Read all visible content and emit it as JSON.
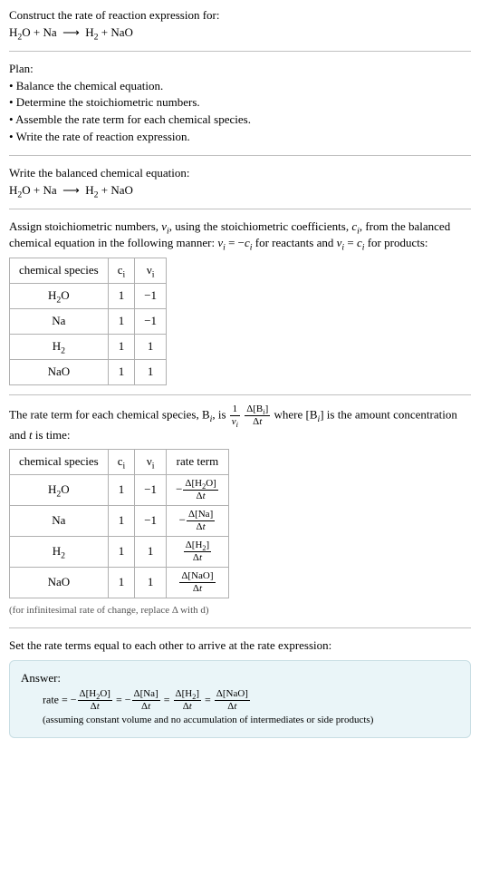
{
  "header": {
    "title": "Construct the rate of reaction expression for:",
    "equation_html": "H<sub>2</sub>O + Na &nbsp;⟶&nbsp; H<sub>2</sub> + NaO"
  },
  "plan": {
    "label": "Plan:",
    "items": [
      "• Balance the chemical equation.",
      "• Determine the stoichiometric numbers.",
      "• Assemble the rate term for each chemical species.",
      "• Write the rate of reaction expression."
    ]
  },
  "balanced": {
    "label": "Write the balanced chemical equation:",
    "equation_html": "H<sub>2</sub>O + Na &nbsp;⟶&nbsp; H<sub>2</sub> + NaO"
  },
  "stoich_intro_html": "Assign stoichiometric numbers, <span class=\"it\">ν<sub>i</sub></span>, using the stoichiometric coefficients, <span class=\"it\">c<sub>i</sub></span>, from the balanced chemical equation in the following manner: <span class=\"it\">ν<sub>i</sub></span> = −<span class=\"it\">c<sub>i</sub></span> for reactants and <span class=\"it\">ν<sub>i</sub></span> = <span class=\"it\">c<sub>i</sub></span> for products:",
  "stoich_table": {
    "headers": [
      "chemical species",
      "c<sub>i</sub>",
      "ν<sub>i</sub>"
    ],
    "rows": [
      [
        "H<sub>2</sub>O",
        "1",
        "−1"
      ],
      [
        "Na",
        "1",
        "−1"
      ],
      [
        "H<sub>2</sub>",
        "1",
        "1"
      ],
      [
        "NaO",
        "1",
        "1"
      ]
    ]
  },
  "rate_intro_html": "The rate term for each chemical species, B<sub><span class=\"it\">i</span></sub>, is <span class=\"frac\"><span class=\"num\">1</span><span class=\"den\"><span class=\"it\">ν<sub>i</sub></span></span></span> <span class=\"frac\"><span class=\"num\">Δ[B<sub><span class=\"it\">i</span></sub>]</span><span class=\"den\">Δ<span class=\"it\">t</span></span></span> where [B<sub><span class=\"it\">i</span></sub>] is the amount concentration and <span class=\"it\">t</span> is time:",
  "rate_table": {
    "headers": [
      "chemical species",
      "c<sub>i</sub>",
      "ν<sub>i</sub>",
      "rate term"
    ],
    "rows": [
      [
        "H<sub>2</sub>O",
        "1",
        "−1",
        "−<span class=\"frac\"><span class=\"num\">Δ[H<sub>2</sub>O]</span><span class=\"den\">Δ<span class=\"it\">t</span></span></span>"
      ],
      [
        "Na",
        "1",
        "−1",
        "−<span class=\"frac\"><span class=\"num\">Δ[Na]</span><span class=\"den\">Δ<span class=\"it\">t</span></span></span>"
      ],
      [
        "H<sub>2</sub>",
        "1",
        "1",
        "<span class=\"frac\"><span class=\"num\">Δ[H<sub>2</sub>]</span><span class=\"den\">Δ<span class=\"it\">t</span></span></span>"
      ],
      [
        "NaO",
        "1",
        "1",
        "<span class=\"frac\"><span class=\"num\">Δ[NaO]</span><span class=\"den\">Δ<span class=\"it\">t</span></span></span>"
      ]
    ]
  },
  "table_note": "(for infinitesimal rate of change, replace Δ with d)",
  "set_terms": "Set the rate terms equal to each other to arrive at the rate expression:",
  "answer": {
    "label": "Answer:",
    "expr_html": "rate = −<span class=\"frac\"><span class=\"num\">Δ[H<sub>2</sub>O]</span><span class=\"den\">Δ<span class=\"it\">t</span></span></span> = −<span class=\"frac\"><span class=\"num\">Δ[Na]</span><span class=\"den\">Δ<span class=\"it\">t</span></span></span> = <span class=\"frac\"><span class=\"num\">Δ[H<sub>2</sub>]</span><span class=\"den\">Δ<span class=\"it\">t</span></span></span> = <span class=\"frac\"><span class=\"num\">Δ[NaO]</span><span class=\"den\">Δ<span class=\"it\">t</span></span></span>",
    "assume": "(assuming constant volume and no accumulation of intermediates or side products)"
  },
  "colors": {
    "text": "#000000",
    "divider": "#c0c0c0",
    "table_border": "#b0b0b0",
    "answer_bg": "#eaf5f8",
    "answer_border": "#c8dee4",
    "note": "#555555"
  }
}
